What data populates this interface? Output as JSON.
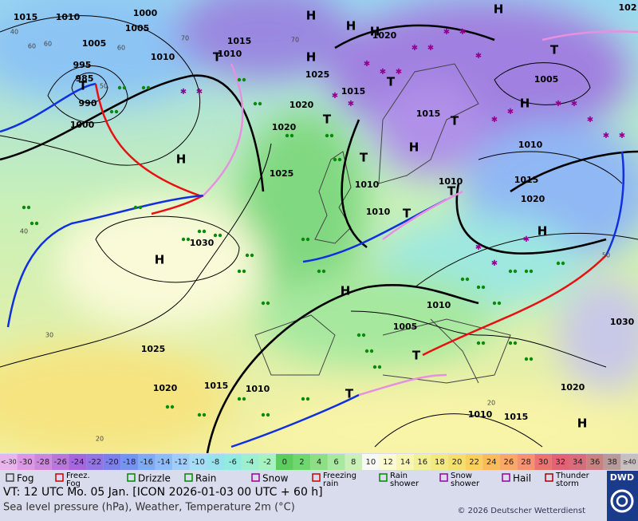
{
  "map": {
    "pressure_labels": [
      "1015",
      "1010",
      "1000",
      "1005",
      "1005",
      "1010",
      "995",
      "985",
      "990",
      "1000",
      "1015",
      "1010",
      "1020",
      "1025",
      "1020",
      "1020",
      "1025",
      "1015",
      "1015",
      "1010",
      "1010",
      "1010",
      "1005",
      "1010",
      "1015",
      "1020",
      "1030",
      "1025",
      "1020",
      "1015",
      "1010",
      "1005",
      "1010",
      "1030",
      "1020",
      "1010",
      "1015",
      "102"
    ],
    "centers": [
      "H",
      "H",
      "H",
      "H",
      "H",
      "H",
      "H",
      "H",
      "H",
      "H",
      "H",
      "H",
      "T",
      "T",
      "T",
      "T",
      "T",
      "T",
      "T",
      "T",
      "T",
      "T",
      "T"
    ],
    "isotherm_labels": [
      "60",
      "50",
      "40",
      "30",
      "20",
      "70",
      "70",
      "60",
      "20",
      "40",
      "60",
      "50"
    ]
  },
  "legend": {
    "scale": [
      {
        "label": "<-30",
        "color": "#e8b4ec"
      },
      {
        "label": "-30",
        "color": "#dc98e4"
      },
      {
        "label": "-28",
        "color": "#cc88dc"
      },
      {
        "label": "-26",
        "color": "#b878d8"
      },
      {
        "label": "-24",
        "color": "#a468dc"
      },
      {
        "label": "-22",
        "color": "#9274e2"
      },
      {
        "label": "-20",
        "color": "#7c80ea"
      },
      {
        "label": "-18",
        "color": "#7494f0"
      },
      {
        "label": "-16",
        "color": "#80aaf2"
      },
      {
        "label": "-14",
        "color": "#90bcf6"
      },
      {
        "label": "-12",
        "color": "#a0cef8"
      },
      {
        "label": "-10",
        "color": "#a8dcf6"
      },
      {
        "label": "-8",
        "color": "#98e2ee"
      },
      {
        "label": "-6",
        "color": "#92eae0"
      },
      {
        "label": "-4",
        "color": "#9cf0d0"
      },
      {
        "label": "-2",
        "color": "#a6f2c0"
      },
      {
        "label": "0",
        "color": "#5ccc5c"
      },
      {
        "label": "2",
        "color": "#70d670"
      },
      {
        "label": "4",
        "color": "#8ede86"
      },
      {
        "label": "6",
        "color": "#a8e8a0"
      },
      {
        "label": "8",
        "color": "#c8f0b8"
      },
      {
        "label": "10",
        "color": "#f8f8f4"
      },
      {
        "label": "12",
        "color": "#fafad4"
      },
      {
        "label": "14",
        "color": "#f8f6b4"
      },
      {
        "label": "16",
        "color": "#f2f096"
      },
      {
        "label": "18",
        "color": "#f2ea80"
      },
      {
        "label": "20",
        "color": "#f6e06c"
      },
      {
        "label": "22",
        "color": "#f8d060"
      },
      {
        "label": "24",
        "color": "#f8bc5e"
      },
      {
        "label": "26",
        "color": "#f8a868"
      },
      {
        "label": "28",
        "color": "#f69272"
      },
      {
        "label": "30",
        "color": "#ea7272"
      },
      {
        "label": "32",
        "color": "#e06476"
      },
      {
        "label": "34",
        "color": "#d66c7c"
      },
      {
        "label": "36",
        "color": "#c88282"
      },
      {
        "label": "38",
        "color": "#b89a9a"
      },
      {
        "label": "≥40",
        "color": "#c8c0c0"
      }
    ],
    "weather": [
      "Fog",
      "Freez. Fog",
      "Drizzle",
      "Rain",
      "Snow",
      "Freezing rain",
      "Rain shower",
      "Snow shower",
      "Hail",
      "Thunder storm"
    ]
  },
  "footer": {
    "valid_time": "VT: 12 UTC Mo.  05 Jan. [ICON 2026-01-03  00 UTC + 60 h]",
    "description": "Sea level pressure (hPa), Weather, Temperature 2m (°C)",
    "copyright": "© 2026 Deutscher Wetterdienst",
    "logo": "DWD"
  }
}
